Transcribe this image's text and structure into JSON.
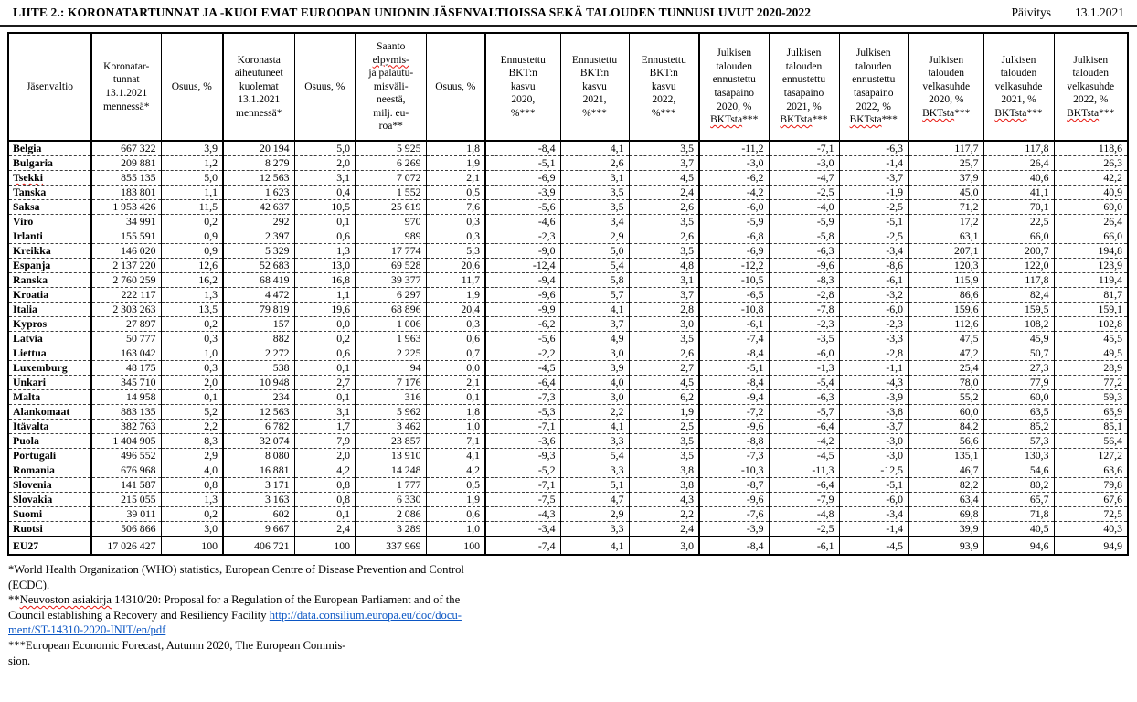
{
  "header": {
    "title": "LIITE 2.: KORONATARTUNNAT JA -KUOLEMAT EUROOPAN UNIONIN JÄSENVALTIOISSA SEKÄ TALOUDEN TUNNUSLUVUT 2020-2022",
    "update_label": "Päivitys",
    "update_date": "13.1.2021"
  },
  "colors": {
    "link_blue": "#0b56c4",
    "squiggle_red": "#e8140c"
  },
  "table": {
    "columns": [
      {
        "id": "jasenvaltio",
        "lines": [
          "Jäsenvaltio"
        ]
      },
      {
        "id": "tartunnat",
        "lines": [
          "Koronatar-",
          "tunnat",
          "13.1.2021",
          "mennessä*"
        ]
      },
      {
        "id": "osuus-tartunnat",
        "lines": [
          "Osuus, %"
        ]
      },
      {
        "id": "kuolemat",
        "lines": [
          "Koronasta",
          "aiheutuneet",
          "kuolemat",
          "13.1.2021",
          "mennessä*"
        ]
      },
      {
        "id": "osuus-kuolemat",
        "lines": [
          "Osuus, %"
        ]
      },
      {
        "id": "saanto",
        "lines": [
          "Saanto",
          "elpymis-",
          "ja palautu-",
          "misväli-",
          "neestä,",
          "milj. eu-",
          "roa**"
        ],
        "wavy": [
          "elpymis-"
        ]
      },
      {
        "id": "osuus-saanto",
        "lines": [
          "Osuus, %"
        ]
      },
      {
        "id": "bkt-kasvu-2020",
        "lines": [
          "Ennustettu",
          "BKT:n",
          "kasvu",
          "2020,",
          "%***"
        ]
      },
      {
        "id": "bkt-kasvu-2021",
        "lines": [
          "Ennustettu",
          "BKT:n",
          "kasvu",
          "2021,",
          "%***"
        ]
      },
      {
        "id": "bkt-kasvu-2022",
        "lines": [
          "Ennustettu",
          "BKT:n",
          "kasvu",
          "2022,",
          "%***"
        ]
      },
      {
        "id": "tasapaino-2020",
        "lines": [
          "Julkisen",
          "talouden",
          "ennustettu",
          "tasapaino",
          "2020, %",
          "BKTsta***"
        ],
        "wavy": [
          "BKTsta"
        ]
      },
      {
        "id": "tasapaino-2021",
        "lines": [
          "Julkisen",
          "talouden",
          "ennustettu",
          "tasapaino",
          "2021, %",
          "BKTsta***"
        ],
        "wavy": [
          "BKTsta"
        ]
      },
      {
        "id": "tasapaino-2022",
        "lines": [
          "Julkisen",
          "talouden",
          "ennustettu",
          "tasapaino",
          "2022, %",
          "BKTsta***"
        ],
        "wavy": [
          "BKTsta"
        ]
      },
      {
        "id": "velkasuhde-2020",
        "lines": [
          "Julkisen",
          "talouden",
          "velkasuhde",
          "2020, %",
          "BKTsta***"
        ],
        "wavy": [
          "BKTsta"
        ]
      },
      {
        "id": "velkasuhde-2021",
        "lines": [
          "Julkisen",
          "talouden",
          "velkasuhde",
          "2021, %",
          "BKTsta***"
        ],
        "wavy": [
          "BKTsta"
        ]
      },
      {
        "id": "velkasuhde-2022",
        "lines": [
          "Julkisen",
          "talouden",
          "velkasuhde",
          "2022, %",
          "BKTsta***"
        ],
        "wavy": [
          "BKTsta"
        ]
      }
    ],
    "rows": [
      {
        "name": "Belgia",
        "values": [
          "667 322",
          "3,9",
          "20 194",
          "5,0",
          "5 925",
          "1,8",
          "-8,4",
          "4,1",
          "3,5",
          "-11,2",
          "-7,1",
          "-6,3",
          "117,7",
          "117,8",
          "118,6"
        ]
      },
      {
        "name": "Bulgaria",
        "values": [
          "209 881",
          "1,2",
          "8 279",
          "2,0",
          "6 269",
          "1,9",
          "-5,1",
          "2,6",
          "3,7",
          "-3,0",
          "-3,0",
          "-1,4",
          "25,7",
          "26,4",
          "26,3"
        ]
      },
      {
        "name": "Tsekki",
        "wavy_name": true,
        "values": [
          "855 135",
          "5,0",
          "12 563",
          "3,1",
          "7 072",
          "2,1",
          "-6,9",
          "3,1",
          "4,5",
          "-6,2",
          "-4,7",
          "-3,7",
          "37,9",
          "40,6",
          "42,2"
        ]
      },
      {
        "name": "Tanska",
        "values": [
          "183 801",
          "1,1",
          "1 623",
          "0,4",
          "1 552",
          "0,5",
          "-3,9",
          "3,5",
          "2,4",
          "-4,2",
          "-2,5",
          "-1,9",
          "45,0",
          "41,1",
          "40,9"
        ]
      },
      {
        "name": "Saksa",
        "values": [
          "1 953 426",
          "11,5",
          "42 637",
          "10,5",
          "25 619",
          "7,6",
          "-5,6",
          "3,5",
          "2,6",
          "-6,0",
          "-4,0",
          "-2,5",
          "71,2",
          "70,1",
          "69,0"
        ]
      },
      {
        "name": "Viro",
        "values": [
          "34 991",
          "0,2",
          "292",
          "0,1",
          "970",
          "0,3",
          "-4,6",
          "3,4",
          "3,5",
          "-5,9",
          "-5,9",
          "-5,1",
          "17,2",
          "22,5",
          "26,4"
        ]
      },
      {
        "name": "Irlanti",
        "values": [
          "155 591",
          "0,9",
          "2 397",
          "0,6",
          "989",
          "0,3",
          "-2,3",
          "2,9",
          "2,6",
          "-6,8",
          "-5,8",
          "-2,5",
          "63,1",
          "66,0",
          "66,0"
        ]
      },
      {
        "name": "Kreikka",
        "values": [
          "146 020",
          "0,9",
          "5 329",
          "1,3",
          "17 774",
          "5,3",
          "-9,0",
          "5,0",
          "3,5",
          "-6,9",
          "-6,3",
          "-3,4",
          "207,1",
          "200,7",
          "194,8"
        ]
      },
      {
        "name": "Espanja",
        "values": [
          "2 137 220",
          "12,6",
          "52 683",
          "13,0",
          "69 528",
          "20,6",
          "-12,4",
          "5,4",
          "4,8",
          "-12,2",
          "-9,6",
          "-8,6",
          "120,3",
          "122,0",
          "123,9"
        ]
      },
      {
        "name": "Ranska",
        "values": [
          "2 760 259",
          "16,2",
          "68 419",
          "16,8",
          "39 377",
          "11,7",
          "-9,4",
          "5,8",
          "3,1",
          "-10,5",
          "-8,3",
          "-6,1",
          "115,9",
          "117,8",
          "119,4"
        ]
      },
      {
        "name": "Kroatia",
        "values": [
          "222 117",
          "1,3",
          "4 472",
          "1,1",
          "6 297",
          "1,9",
          "-9,6",
          "5,7",
          "3,7",
          "-6,5",
          "-2,8",
          "-3,2",
          "86,6",
          "82,4",
          "81,7"
        ]
      },
      {
        "name": "Italia",
        "values": [
          "2 303 263",
          "13,5",
          "79 819",
          "19,6",
          "68 896",
          "20,4",
          "-9,9",
          "4,1",
          "2,8",
          "-10,8",
          "-7,8",
          "-6,0",
          "159,6",
          "159,5",
          "159,1"
        ]
      },
      {
        "name": "Kypros",
        "values": [
          "27 897",
          "0,2",
          "157",
          "0,0",
          "1 006",
          "0,3",
          "-6,2",
          "3,7",
          "3,0",
          "-6,1",
          "-2,3",
          "-2,3",
          "112,6",
          "108,2",
          "102,8"
        ]
      },
      {
        "name": "Latvia",
        "values": [
          "50 777",
          "0,3",
          "882",
          "0,2",
          "1 963",
          "0,6",
          "-5,6",
          "4,9",
          "3,5",
          "-7,4",
          "-3,5",
          "-3,3",
          "47,5",
          "45,9",
          "45,5"
        ]
      },
      {
        "name": "Liettua",
        "values": [
          "163 042",
          "1,0",
          "2 272",
          "0,6",
          "2 225",
          "0,7",
          "-2,2",
          "3,0",
          "2,6",
          "-8,4",
          "-6,0",
          "-2,8",
          "47,2",
          "50,7",
          "49,5"
        ]
      },
      {
        "name": "Luxemburg",
        "values": [
          "48 175",
          "0,3",
          "538",
          "0,1",
          "94",
          "0,0",
          "-4,5",
          "3,9",
          "2,7",
          "-5,1",
          "-1,3",
          "-1,1",
          "25,4",
          "27,3",
          "28,9"
        ]
      },
      {
        "name": "Unkari",
        "values": [
          "345 710",
          "2,0",
          "10 948",
          "2,7",
          "7 176",
          "2,1",
          "-6,4",
          "4,0",
          "4,5",
          "-8,4",
          "-5,4",
          "-4,3",
          "78,0",
          "77,9",
          "77,2"
        ]
      },
      {
        "name": "Malta",
        "values": [
          "14 958",
          "0,1",
          "234",
          "0,1",
          "316",
          "0,1",
          "-7,3",
          "3,0",
          "6,2",
          "-9,4",
          "-6,3",
          "-3,9",
          "55,2",
          "60,0",
          "59,3"
        ]
      },
      {
        "name": "Alankomaat",
        "values": [
          "883 135",
          "5,2",
          "12 563",
          "3,1",
          "5 962",
          "1,8",
          "-5,3",
          "2,2",
          "1,9",
          "-7,2",
          "-5,7",
          "-3,8",
          "60,0",
          "63,5",
          "65,9"
        ]
      },
      {
        "name": "Itävalta",
        "values": [
          "382 763",
          "2,2",
          "6 782",
          "1,7",
          "3 462",
          "1,0",
          "-7,1",
          "4,1",
          "2,5",
          "-9,6",
          "-6,4",
          "-3,7",
          "84,2",
          "85,2",
          "85,1"
        ]
      },
      {
        "name": "Puola",
        "values": [
          "1 404 905",
          "8,3",
          "32 074",
          "7,9",
          "23 857",
          "7,1",
          "-3,6",
          "3,3",
          "3,5",
          "-8,8",
          "-4,2",
          "-3,0",
          "56,6",
          "57,3",
          "56,4"
        ]
      },
      {
        "name": "Portugali",
        "values": [
          "496 552",
          "2,9",
          "8 080",
          "2,0",
          "13 910",
          "4,1",
          "-9,3",
          "5,4",
          "3,5",
          "-7,3",
          "-4,5",
          "-3,0",
          "135,1",
          "130,3",
          "127,2"
        ]
      },
      {
        "name": "Romania",
        "values": [
          "676 968",
          "4,0",
          "16 881",
          "4,2",
          "14 248",
          "4,2",
          "-5,2",
          "3,3",
          "3,8",
          "-10,3",
          "-11,3",
          "-12,5",
          "46,7",
          "54,6",
          "63,6"
        ]
      },
      {
        "name": "Slovenia",
        "values": [
          "141 587",
          "0,8",
          "3 171",
          "0,8",
          "1 777",
          "0,5",
          "-7,1",
          "5,1",
          "3,8",
          "-8,7",
          "-6,4",
          "-5,1",
          "82,2",
          "80,2",
          "79,8"
        ]
      },
      {
        "name": "Slovakia",
        "values": [
          "215 055",
          "1,3",
          "3 163",
          "0,8",
          "6 330",
          "1,9",
          "-7,5",
          "4,7",
          "4,3",
          "-9,6",
          "-7,9",
          "-6,0",
          "63,4",
          "65,7",
          "67,6"
        ]
      },
      {
        "name": "Suomi",
        "values": [
          "39 011",
          "0,2",
          "602",
          "0,1",
          "2 086",
          "0,6",
          "-4,3",
          "2,9",
          "2,2",
          "-7,6",
          "-4,8",
          "-3,4",
          "69,8",
          "71,8",
          "72,5"
        ]
      },
      {
        "name": "Ruotsi",
        "values": [
          "506 866",
          "3,0",
          "9 667",
          "2,4",
          "3 289",
          "1,0",
          "-3,4",
          "3,3",
          "2,4",
          "-3,9",
          "-2,5",
          "-1,4",
          "39,9",
          "40,5",
          "40,3"
        ]
      }
    ],
    "total_row": {
      "name": "EU27",
      "values": [
        "17 026 427",
        "100",
        "406 721",
        "100",
        "337 969",
        "100",
        "-7,4",
        "4,1",
        "3,0",
        "-8,4",
        "-6,1",
        "-4,5",
        "93,9",
        "94,6",
        "94,9"
      ]
    }
  },
  "footnotes": {
    "lines": [
      [
        {
          "t": "*World Health Organization (WHO) statistics, European Centre of Disease Prevention and Control"
        }
      ],
      [
        {
          "t": "(ECDC)."
        }
      ],
      [
        {
          "t": "**"
        },
        {
          "t": "Neuvoston asiakirja",
          "kind": "wavy"
        },
        {
          "t": " 14310/20: Proposal for a Regulation of the European Parliament and of the"
        }
      ],
      [
        {
          "t": "Council establishing a Recovery and Resiliency Facility "
        },
        {
          "t": "http://data.consilium.europa.eu/doc/docu-",
          "kind": "link"
        }
      ],
      [
        {
          "t": "ment/ST-14310-2020-INIT/en/pdf",
          "kind": "link"
        }
      ],
      [
        {
          "t": "***European Economic Forecast, Autumn 2020, The European Commis-"
        }
      ],
      [
        {
          "t": "sion."
        }
      ]
    ]
  }
}
